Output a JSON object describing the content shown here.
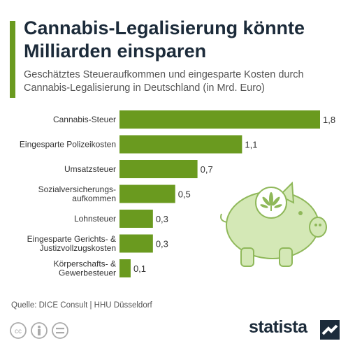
{
  "header": {
    "title": "Cannabis-Legalisierung könnte Milliarden einsparen",
    "subtitle": "Geschätztes Steueraufkommen und eingesparte Kosten durch Cannabis-Legalisierung in Deutschland (in Mrd. Euro)"
  },
  "chart_data": {
    "type": "bar",
    "orientation": "horizontal",
    "categories": [
      [
        "Cannabis-Steuer"
      ],
      [
        "Eingesparte Polizeikosten"
      ],
      [
        "Umsatzsteuer"
      ],
      [
        "Sozialversicherungs-",
        "aufkommen"
      ],
      [
        "Lohnsteuer"
      ],
      [
        "Eingesparte Gerichts- &",
        "Justizvollzugskosten"
      ],
      [
        "Körperschafts- &",
        "Gewerbesteuer"
      ]
    ],
    "values": [
      1.8,
      1.1,
      0.7,
      0.5,
      0.3,
      0.3,
      0.1
    ],
    "value_labels": [
      "1,8",
      "1,1",
      "0,7",
      "0,5",
      "0,3",
      "0,3",
      "0,1"
    ],
    "bar_color": "#6a9a1f",
    "xlim": [
      0,
      1.8
    ],
    "grid": false
  },
  "footer": {
    "source": "Quelle: DICE Consult | HHU Düsseldorf",
    "brand": "statista"
  },
  "icons": [
    "cc-icon",
    "person-icon",
    "equals-icon",
    "piggy-bank-icon",
    "cannabis-leaf-icon",
    "statista-logo-icon"
  ],
  "colors": {
    "accent": "#6a9a1f",
    "title": "#1c2b3a",
    "piggy": "#d4e8b6",
    "piggy_stroke": "#8fb85a"
  }
}
